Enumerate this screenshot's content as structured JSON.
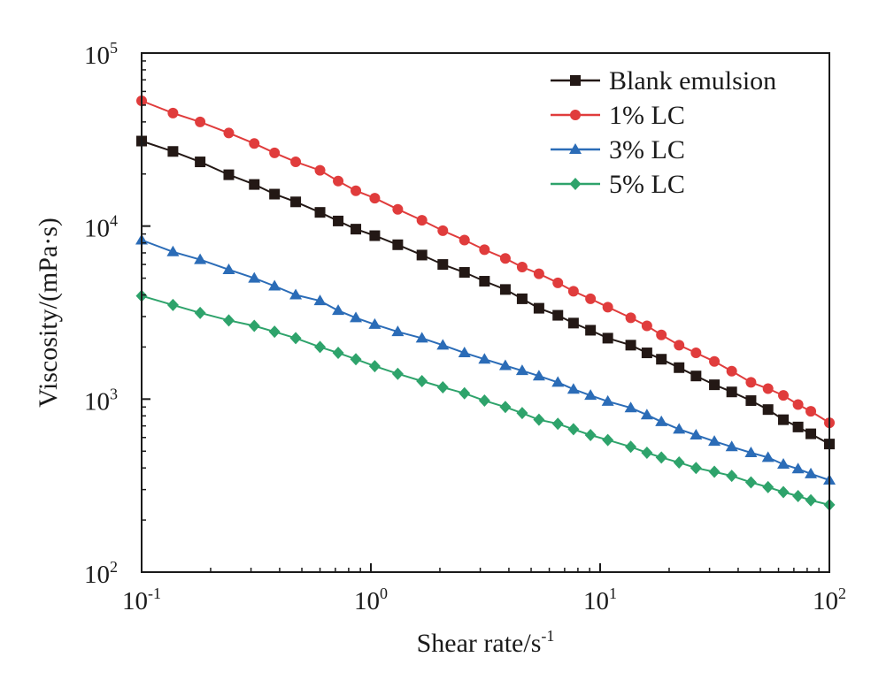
{
  "chart_data": {
    "type": "line",
    "xscale": "log",
    "yscale": "log",
    "xlim": [
      0.1,
      100
    ],
    "ylim": [
      100,
      100000
    ],
    "grid": false,
    "legend_position": "top-right",
    "xlabel": {
      "base": "Shear rate/s",
      "sup": "-1"
    },
    "ylabel": "Viscosity/(mPa·s)",
    "x_ticks": [
      {
        "value": 0.1,
        "base": "10",
        "exp": "-1"
      },
      {
        "value": 1,
        "base": "10",
        "exp": "0"
      },
      {
        "value": 10,
        "base": "10",
        "exp": "1"
      },
      {
        "value": 100,
        "base": "10",
        "exp": "2"
      }
    ],
    "y_ticks": [
      {
        "value": 100,
        "base": "10",
        "exp": "2"
      },
      {
        "value": 1000,
        "base": "10",
        "exp": "3"
      },
      {
        "value": 10000,
        "base": "10",
        "exp": "4"
      },
      {
        "value": 100000,
        "base": "10",
        "exp": "5"
      }
    ],
    "x": [
      0.1,
      0.133,
      0.178,
      0.237,
      0.316,
      0.422,
      0.562,
      0.75,
      1.0,
      1.33,
      1.78,
      2.37,
      3.16,
      4.22,
      5.62,
      7.5,
      10.0,
      13.3,
      17.8,
      23.7,
      31.6,
      42.2,
      56.2,
      75.0,
      100.0
    ],
    "series": [
      {
        "name": "Blank emulsion",
        "color": "#231815",
        "marker": "square",
        "x": [
          0.1,
          0.137,
          0.18,
          0.24,
          0.31,
          0.38,
          0.47,
          0.6,
          0.72,
          0.86,
          1.04,
          1.31,
          1.67,
          2.06,
          2.56,
          3.13,
          3.86,
          4.57,
          5.41,
          6.54,
          7.65,
          9.08,
          10.8,
          13.6,
          16.0,
          18.5,
          22.1,
          26.2,
          31.5,
          37.5,
          45.5,
          54.0,
          63.0,
          73.0,
          83.0,
          100.0
        ],
        "values": [
          31000,
          27000,
          23500,
          19800,
          17400,
          15300,
          13800,
          12000,
          10700,
          9600,
          8800,
          7800,
          6800,
          6000,
          5400,
          4800,
          4300,
          3800,
          3350,
          3050,
          2750,
          2500,
          2250,
          2050,
          1850,
          1700,
          1520,
          1360,
          1210,
          1100,
          980,
          870,
          760,
          690,
          630,
          550
        ]
      },
      {
        "name": "1% LC",
        "color": "#e03c3c",
        "marker": "circle",
        "x": [
          0.1,
          0.137,
          0.18,
          0.24,
          0.31,
          0.38,
          0.47,
          0.6,
          0.72,
          0.86,
          1.04,
          1.31,
          1.67,
          2.06,
          2.56,
          3.13,
          3.86,
          4.57,
          5.41,
          6.54,
          7.65,
          9.08,
          10.8,
          13.6,
          16.0,
          18.5,
          22.1,
          26.2,
          31.5,
          37.5,
          45.5,
          54.0,
          63.0,
          73.0,
          83.0,
          100.0
        ],
        "values": [
          53000,
          45000,
          40000,
          34500,
          30000,
          26500,
          23500,
          21000,
          18200,
          16000,
          14500,
          12500,
          10800,
          9400,
          8300,
          7300,
          6500,
          5800,
          5300,
          4700,
          4200,
          3800,
          3400,
          2950,
          2650,
          2350,
          2050,
          1850,
          1650,
          1450,
          1250,
          1150,
          1050,
          930,
          850,
          730
        ]
      },
      {
        "name": "3% LC",
        "color": "#2b6cb7",
        "marker": "triangle",
        "x": [
          0.1,
          0.137,
          0.18,
          0.24,
          0.31,
          0.38,
          0.47,
          0.6,
          0.72,
          0.86,
          1.04,
          1.31,
          1.67,
          2.06,
          2.56,
          3.13,
          3.86,
          4.57,
          5.41,
          6.54,
          7.65,
          9.08,
          10.8,
          13.6,
          16.0,
          18.5,
          22.1,
          26.2,
          31.5,
          37.5,
          45.5,
          54.0,
          63.0,
          73.0,
          83.0,
          100.0
        ],
        "values": [
          8300,
          7100,
          6400,
          5600,
          5000,
          4500,
          4000,
          3700,
          3250,
          2950,
          2700,
          2450,
          2250,
          2050,
          1850,
          1700,
          1560,
          1460,
          1360,
          1250,
          1140,
          1050,
          970,
          890,
          810,
          740,
          670,
          620,
          570,
          530,
          490,
          460,
          420,
          395,
          370,
          340
        ]
      },
      {
        "name": "5% LC",
        "color": "#2ea36b",
        "marker": "diamond",
        "x": [
          0.1,
          0.137,
          0.18,
          0.24,
          0.31,
          0.38,
          0.47,
          0.6,
          0.72,
          0.86,
          1.04,
          1.31,
          1.67,
          2.06,
          2.56,
          3.13,
          3.86,
          4.57,
          5.41,
          6.54,
          7.65,
          9.08,
          10.8,
          13.6,
          16.0,
          18.5,
          22.1,
          26.2,
          31.5,
          37.5,
          45.5,
          54.0,
          63.0,
          73.0,
          83.0,
          100.0
        ],
        "values": [
          3950,
          3500,
          3150,
          2850,
          2650,
          2450,
          2250,
          2000,
          1850,
          1700,
          1550,
          1400,
          1270,
          1170,
          1080,
          980,
          900,
          830,
          760,
          720,
          670,
          620,
          580,
          530,
          490,
          460,
          430,
          400,
          380,
          360,
          330,
          310,
          290,
          275,
          260,
          245
        ]
      }
    ]
  }
}
